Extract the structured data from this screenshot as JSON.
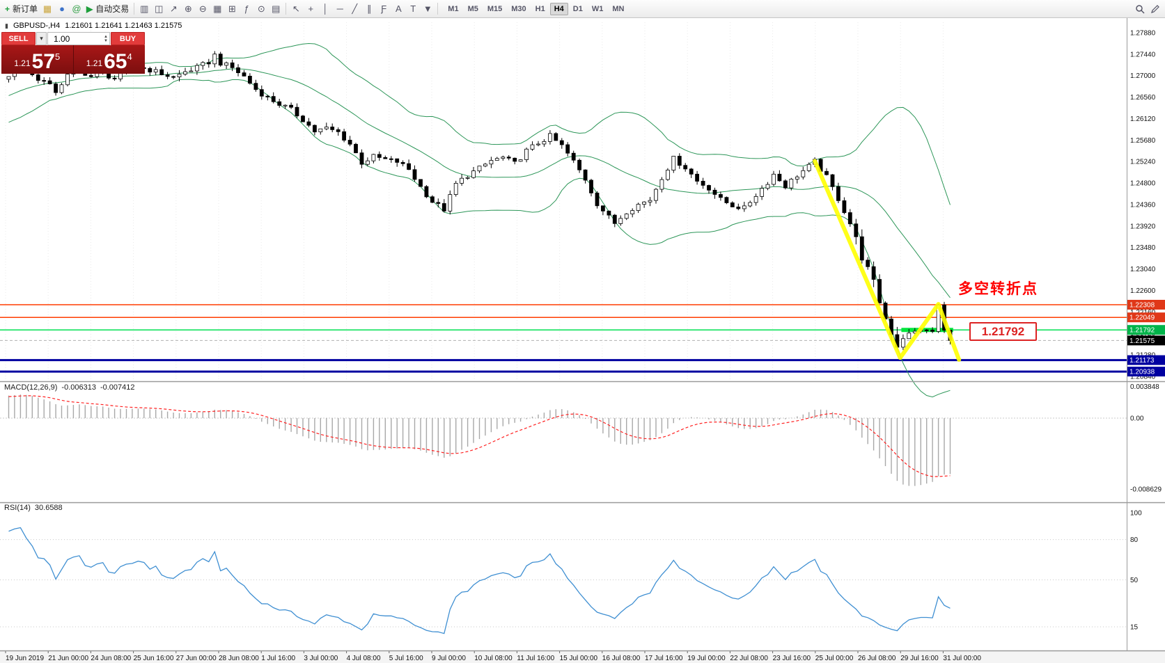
{
  "toolbar": {
    "new_order_label": "新订单",
    "new_order_icon_glyph": "+",
    "auto_trading_label": "自动交易",
    "auto_trading_icon_glyph": "▶",
    "quick_icons": [
      {
        "name": "profiles-icon",
        "glyph": "▦",
        "color": "#caa53c"
      },
      {
        "name": "market-watch-icon",
        "glyph": "●",
        "color": "#3c72ca"
      },
      {
        "name": "community-icon",
        "glyph": "@",
        "color": "#2f9e44"
      }
    ],
    "tool_icons": [
      {
        "name": "bar-chart-icon",
        "glyph": "▥"
      },
      {
        "name": "candlestick-chart-icon",
        "glyph": "◫"
      },
      {
        "name": "line-chart-icon",
        "glyph": "↗"
      },
      {
        "name": "zoom-in-icon",
        "glyph": "⊕"
      },
      {
        "name": "zoom-out-icon",
        "glyph": "⊖"
      },
      {
        "name": "grid-icon",
        "glyph": "▦"
      },
      {
        "name": "arrange-windows-icon",
        "glyph": "⊞"
      },
      {
        "name": "indicators-icon",
        "glyph": "ƒ"
      },
      {
        "name": "periods-icon",
        "glyph": "⊙"
      },
      {
        "name": "templates-icon",
        "glyph": "▤"
      }
    ],
    "draw_icons": [
      {
        "name": "cursor-icon",
        "glyph": "↖"
      },
      {
        "name": "crosshair-icon",
        "glyph": "+"
      },
      {
        "name": "vertical-line-icon",
        "glyph": "│"
      },
      {
        "name": "horizontal-line-icon",
        "glyph": "─"
      },
      {
        "name": "trendline-icon",
        "glyph": "╱"
      },
      {
        "name": "channel-icon",
        "glyph": "∥"
      },
      {
        "name": "fibonacci-icon",
        "glyph": "Ƒ"
      },
      {
        "name": "text-icon",
        "glyph": "A"
      },
      {
        "name": "label-icon",
        "glyph": "T"
      },
      {
        "name": "arrows-icon",
        "glyph": "▼"
      }
    ],
    "timeframes": [
      "M1",
      "M5",
      "M15",
      "M30",
      "H1",
      "H4",
      "D1",
      "W1",
      "MN"
    ],
    "active_timeframe": "H4"
  },
  "trade_panel": {
    "sell_label": "SELL",
    "buy_label": "BUY",
    "volume": "1.00",
    "caret_glyph": "▾",
    "spin_up_glyph": "▲",
    "spin_down_glyph": "▼",
    "sell_price": {
      "prefix": "1.21",
      "big": "57",
      "sup": "5"
    },
    "buy_price": {
      "prefix": "1.21",
      "big": "65",
      "sup": "4"
    }
  },
  "chart_header": {
    "icon_glyph": "▮",
    "symbol": "GBPUSD-,H4",
    "ohlc": "1.21601 1.21641 1.21463 1.21575"
  },
  "annotation": {
    "text": "多空转折点",
    "color": "#ff0000"
  },
  "price_tag": {
    "text": "1.21792"
  },
  "chart_data": {
    "type": "candlestick+indicators",
    "symbol": "GBPUSD",
    "timeframe": "H4",
    "current_bar": {
      "open": 1.21601,
      "high": 1.21641,
      "low": 1.21463,
      "close": 1.21575
    },
    "price_axis": {
      "ref_price": 1.2788,
      "min": 1.2084,
      "max": 1.2788,
      "tick": 0.0044,
      "labels": [
        "1.27880",
        "1.27440",
        "1.27000",
        "1.26560",
        "1.26120",
        "1.25680",
        "1.25240",
        "1.24800",
        "1.24360",
        "1.23920",
        "1.23480",
        "1.23040",
        "1.22600",
        "1.22160",
        "1.21720",
        "1.21280",
        "1.20840"
      ]
    },
    "bid": {
      "price": 1.21575,
      "label": "1.21575",
      "chip_bg": "#000000"
    },
    "levels": [
      {
        "price": 1.22308,
        "label": "1.22308",
        "color": "#ff3c00",
        "chip_bg": "#e03818",
        "width": 1.5
      },
      {
        "price": 1.22049,
        "label": "1.22049",
        "color": "#ff3c00",
        "chip_bg": "#e03818",
        "width": 1.5
      },
      {
        "price": 1.21792,
        "label": "1.21792",
        "color": "#00e050",
        "chip_bg": "#00b44a",
        "width": 1.5
      },
      {
        "price": 1.21173,
        "label": "1.21173",
        "color": "#0000a0",
        "chip_bg": "#0000a0",
        "width": 3
      },
      {
        "price": 1.20938,
        "label": "1.20938",
        "color": "#0000a0",
        "chip_bg": "#0000a0",
        "width": 3
      }
    ],
    "trend_line": {
      "color": "#ffff00",
      "points": [
        [
          137,
          1.2525
        ],
        [
          151.5,
          1.2122
        ],
        [
          158,
          1.2232
        ],
        [
          161.5,
          1.2118
        ]
      ]
    },
    "highlight_segment": {
      "price": 1.21792,
      "from": 152,
      "to": 160.8,
      "color": "#00e63c"
    },
    "candles": {
      "count": 161,
      "close_path_estimate": [
        [
          -30,
          1.256
        ],
        [
          -24,
          1.2586
        ],
        [
          -18,
          1.2616
        ],
        [
          -12,
          1.2648
        ],
        [
          -6,
          1.2678
        ],
        [
          0,
          1.27
        ],
        [
          2,
          1.2718
        ],
        [
          4,
          1.2701
        ],
        [
          6,
          1.2688
        ],
        [
          8,
          1.2668
        ],
        [
          10,
          1.27
        ],
        [
          12,
          1.2712
        ],
        [
          14,
          1.2698
        ],
        [
          16,
          1.2705
        ],
        [
          18,
          1.2694
        ],
        [
          20,
          1.2706
        ],
        [
          22,
          1.2718
        ],
        [
          24,
          1.2712
        ],
        [
          26,
          1.2704
        ],
        [
          28,
          1.2696
        ],
        [
          30,
          1.2708
        ],
        [
          32,
          1.2716
        ],
        [
          34,
          1.2728
        ],
        [
          35,
          1.2742
        ],
        [
          36,
          1.2726
        ],
        [
          38,
          1.2716
        ],
        [
          40,
          1.2698
        ],
        [
          42,
          1.2672
        ],
        [
          44,
          1.2655
        ],
        [
          46,
          1.2642
        ],
        [
          48,
          1.263
        ],
        [
          50,
          1.261
        ],
        [
          52,
          1.2586
        ],
        [
          54,
          1.2592
        ],
        [
          56,
          1.2584
        ],
        [
          58,
          1.256
        ],
        [
          60,
          1.2522
        ],
        [
          62,
          1.2534
        ],
        [
          64,
          1.2528
        ],
        [
          66,
          1.2524
        ],
        [
          68,
          1.2508
        ],
        [
          70,
          1.2472
        ],
        [
          72,
          1.2442
        ],
        [
          74,
          1.2426
        ],
        [
          76,
          1.2478
        ],
        [
          78,
          1.2496
        ],
        [
          80,
          1.251
        ],
        [
          82,
          1.2526
        ],
        [
          84,
          1.2532
        ],
        [
          86,
          1.252
        ],
        [
          88,
          1.2546
        ],
        [
          90,
          1.2562
        ],
        [
          92,
          1.2576
        ],
        [
          94,
          1.2556
        ],
        [
          96,
          1.2524
        ],
        [
          98,
          1.2488
        ],
        [
          100,
          1.2438
        ],
        [
          102,
          1.241
        ],
        [
          103,
          1.2398
        ],
        [
          105,
          1.2422
        ],
        [
          107,
          1.2436
        ],
        [
          109,
          1.2446
        ],
        [
          111,
          1.2492
        ],
        [
          113,
          1.253
        ],
        [
          115,
          1.2512
        ],
        [
          117,
          1.2484
        ],
        [
          119,
          1.247
        ],
        [
          121,
          1.2446
        ],
        [
          123,
          1.2434
        ],
        [
          125,
          1.2428
        ],
        [
          127,
          1.2456
        ],
        [
          129,
          1.2482
        ],
        [
          130,
          1.2498
        ],
        [
          132,
          1.2474
        ],
        [
          134,
          1.2496
        ],
        [
          136,
          1.2514
        ],
        [
          137,
          1.2524
        ],
        [
          139,
          1.2492
        ],
        [
          141,
          1.2448
        ],
        [
          143,
          1.2398
        ],
        [
          145,
          1.233
        ],
        [
          147,
          1.2274
        ],
        [
          149,
          1.2202
        ],
        [
          151,
          1.2148
        ],
        [
          152,
          1.2162
        ],
        [
          153,
          1.2172
        ],
        [
          155,
          1.218
        ],
        [
          157,
          1.2176
        ],
        [
          158,
          1.223
        ],
        [
          159,
          1.2178
        ],
        [
          160,
          1.21575
        ]
      ]
    },
    "bollinger": {
      "period": 20,
      "dev": 2,
      "color": "#2c9658"
    },
    "macd": {
      "label": "MACD(12,26,9)",
      "value_main": "-0.006313",
      "value_signal": "-0.007412",
      "axis_labels": [
        {
          "text": "0.003848",
          "value": 0.003848
        },
        {
          "text": "0.00",
          "value": 0
        },
        {
          "text": "-0.008629",
          "value": -0.008629
        }
      ],
      "hist_color": "#a8a8a8",
      "signal_color": "#ff2020"
    },
    "rsi": {
      "label": "RSI(14)",
      "value": "30.6588",
      "levels": [
        100,
        80,
        50,
        15
      ],
      "color": "#3f8fd2",
      "range": [
        0,
        100
      ]
    },
    "time_axis": {
      "labels": [
        "19 Jun 2019",
        "21 Jun 00:00",
        "24 Jun 08:00",
        "25 Jun 16:00",
        "27 Jun 00:00",
        "28 Jun 08:00",
        "1 Jul 16:00",
        "3 Jul 00:00",
        "4 Jul 08:00",
        "5 Jul 16:00",
        "9 Jul 00:00",
        "10 Jul 08:00",
        "11 Jul 16:00",
        "15 Jul 00:00",
        "16 Jul 08:00",
        "17 Jul 16:00",
        "19 Jul 00:00",
        "22 Jul 08:00",
        "23 Jul 16:00",
        "25 Jul 00:00",
        "26 Jul 08:00",
        "29 Jul 16:00",
        "31 Jul 00:00"
      ]
    }
  }
}
